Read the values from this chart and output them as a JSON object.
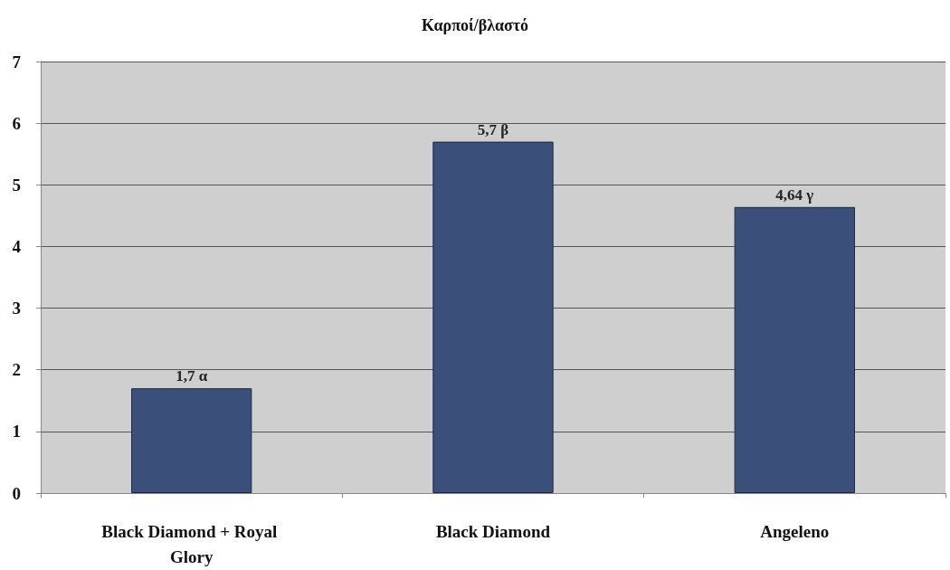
{
  "chart_data": {
    "type": "bar",
    "title": "Καρποί/βλαστό",
    "categories": [
      "Black Diamond + Royal Glory",
      "Black Diamond",
      "Angeleno"
    ],
    "values": [
      1.7,
      5.7,
      4.64
    ],
    "value_labels": [
      "1,7 α",
      "5,7 β",
      "4,64 γ"
    ],
    "color": "#3a4f7a",
    "ylim": [
      0,
      7
    ],
    "yticks": [
      0,
      1,
      2,
      3,
      4,
      5,
      6,
      7
    ],
    "grid": "y"
  }
}
